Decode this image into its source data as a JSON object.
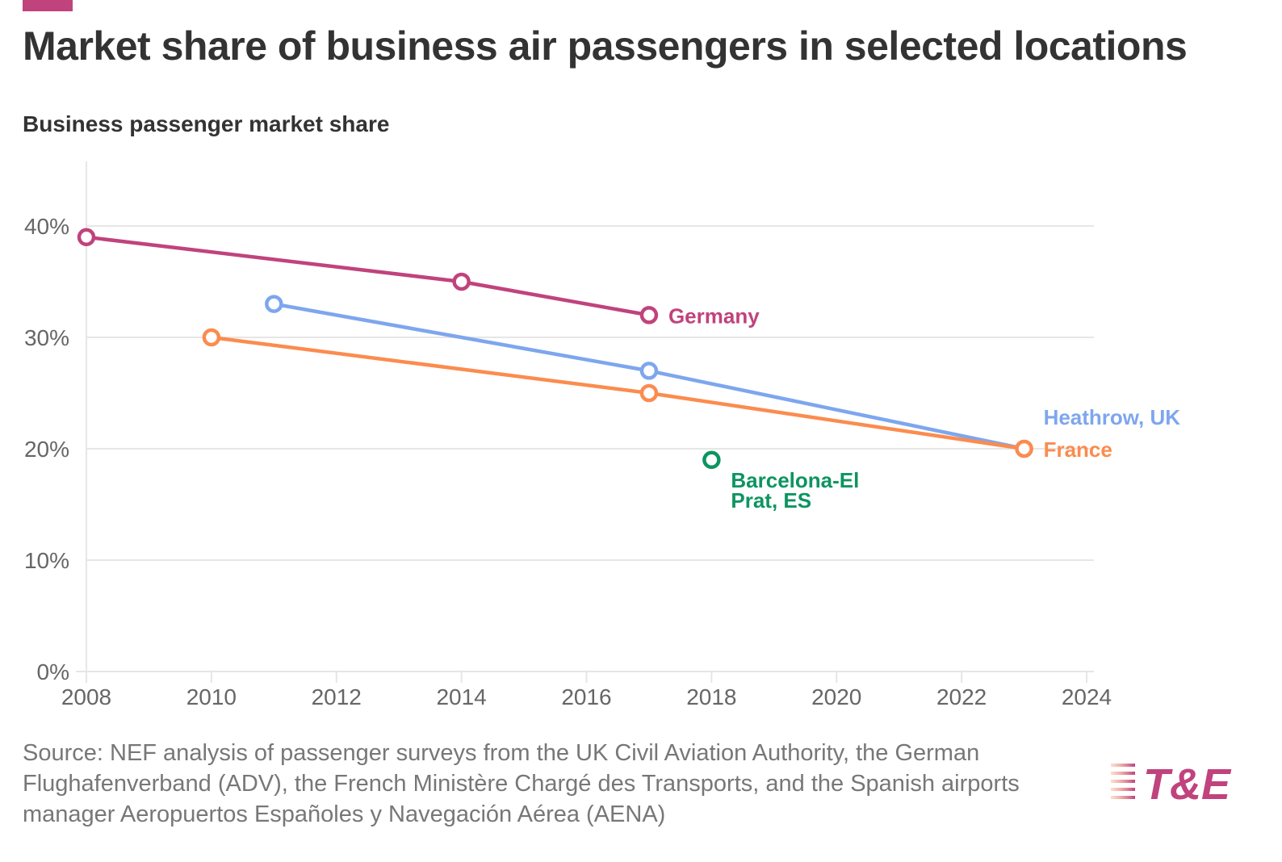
{
  "header": {
    "title": "Market share of business air passengers in selected locations",
    "subtitle": "Business passenger market share",
    "accent_color": "#c0437d"
  },
  "chart_data": {
    "type": "line",
    "title": "Market share of business air passengers in selected locations",
    "ylabel": "Business passenger market share",
    "xlabel": "",
    "xlim": [
      2008,
      2024
    ],
    "ylim": [
      0,
      45
    ],
    "x_ticks": [
      2008,
      2010,
      2012,
      2014,
      2016,
      2018,
      2020,
      2022,
      2024
    ],
    "y_ticks": [
      0,
      10,
      20,
      30,
      40
    ],
    "y_tick_labels": [
      "0%",
      "10%",
      "20%",
      "30%",
      "40%"
    ],
    "grid": true,
    "series": [
      {
        "name": "Germany",
        "color": "#c0437d",
        "x": [
          2008,
          2014,
          2017
        ],
        "values": [
          39,
          35,
          32
        ]
      },
      {
        "name": "Heathrow, UK",
        "color": "#7ea6ee",
        "x": [
          2011,
          2017,
          2023
        ],
        "values": [
          33,
          27,
          20
        ]
      },
      {
        "name": "France",
        "color": "#fb8c4e",
        "x": [
          2010,
          2017,
          2023
        ],
        "values": [
          30,
          25,
          20
        ]
      },
      {
        "name": "Barcelona-El Prat, ES",
        "label_lines": [
          "Barcelona-El",
          "Prat, ES"
        ],
        "color": "#0d9461",
        "x": [
          2018
        ],
        "values": [
          19
        ]
      }
    ]
  },
  "footer": {
    "source": "Source: NEF analysis of passenger surveys from the UK Civil Aviation Authority, the German Flughafenverband (ADV), the French Ministère Chargé des Transports, and the Spanish airports manager Aeropuertos Españoles y Navegación Aérea (AENA)",
    "logo_text": "T&E",
    "logo_color": "#c0437d",
    "logo_gradient_color": "#f7a072"
  }
}
